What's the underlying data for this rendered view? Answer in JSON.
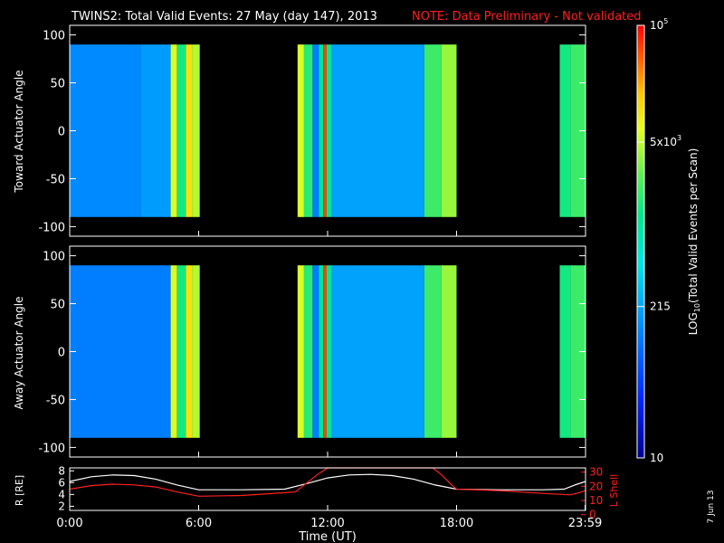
{
  "title": {
    "main": "TWINS2: Total Valid Events: 27 May (day 147), 2013",
    "note": "NOTE: Data Preliminary - Not validated"
  },
  "date_stamp": "7 Jun 13",
  "colors": {
    "background": "#000000",
    "axes": "#ffffff",
    "note": "#ff2020",
    "r_line": "#ffffff",
    "lshell_line": "#ff2020"
  },
  "chart_data": [
    {
      "type": "heatmap",
      "name": "toward",
      "ylabel": "Toward Actuator Angle",
      "ylim": [
        -110,
        110
      ],
      "yticks": [
        "100",
        "50",
        "0",
        "-50",
        "-100"
      ],
      "ytick_values": [
        100,
        50,
        0,
        -50,
        -100
      ],
      "data_yrange": [
        -90,
        90
      ],
      "xlim": [
        0,
        24
      ],
      "blocks": [
        {
          "t0": 0.0,
          "t1": 3.3,
          "level": 0.3
        },
        {
          "t0": 3.3,
          "t1": 4.7,
          "level": 0.33
        },
        {
          "t0": 4.7,
          "t1": 5.0,
          "level": 0.75
        },
        {
          "t0": 5.0,
          "t1": 5.4,
          "level": 0.58
        },
        {
          "t0": 5.4,
          "t1": 5.7,
          "level": 0.8
        },
        {
          "t0": 5.7,
          "t1": 6.05,
          "level": 0.72
        },
        {
          "t0": 10.6,
          "t1": 10.9,
          "level": 0.75
        },
        {
          "t0": 10.9,
          "t1": 11.3,
          "level": 0.6
        },
        {
          "t0": 11.3,
          "t1": 11.6,
          "level": 0.28
        },
        {
          "t0": 11.6,
          "t1": 11.8,
          "level": 0.55
        },
        {
          "t0": 11.8,
          "t1": 11.95,
          "level": 0.95
        },
        {
          "t0": 11.95,
          "t1": 12.2,
          "level": 0.55
        },
        {
          "t0": 12.2,
          "t1": 16.5,
          "level": 0.34
        },
        {
          "t0": 16.5,
          "t1": 17.3,
          "level": 0.62
        },
        {
          "t0": 17.3,
          "t1": 18.0,
          "level": 0.7
        },
        {
          "t0": 22.8,
          "t1": 23.3,
          "level": 0.58
        },
        {
          "t0": 23.3,
          "t1": 24.0,
          "level": 0.62
        }
      ]
    },
    {
      "type": "heatmap",
      "name": "away",
      "ylabel": "Away Actuator Angle",
      "ylim": [
        -110,
        110
      ],
      "yticks": [
        "100",
        "50",
        "0",
        "-50",
        "-100"
      ],
      "ytick_values": [
        100,
        50,
        0,
        -50,
        -100
      ],
      "data_yrange": [
        -90,
        90
      ],
      "xlim": [
        0,
        24
      ],
      "blocks": [
        {
          "t0": 0.0,
          "t1": 4.7,
          "level": 0.28
        },
        {
          "t0": 4.7,
          "t1": 5.0,
          "level": 0.75
        },
        {
          "t0": 5.0,
          "t1": 5.4,
          "level": 0.58
        },
        {
          "t0": 5.4,
          "t1": 5.7,
          "level": 0.8
        },
        {
          "t0": 5.7,
          "t1": 6.05,
          "level": 0.72
        },
        {
          "t0": 10.6,
          "t1": 10.9,
          "level": 0.75
        },
        {
          "t0": 10.9,
          "t1": 11.3,
          "level": 0.6
        },
        {
          "t0": 11.3,
          "t1": 11.6,
          "level": 0.28
        },
        {
          "t0": 11.6,
          "t1": 11.8,
          "level": 0.55
        },
        {
          "t0": 11.8,
          "t1": 11.95,
          "level": 0.95
        },
        {
          "t0": 11.95,
          "t1": 12.2,
          "level": 0.55
        },
        {
          "t0": 12.2,
          "t1": 16.5,
          "level": 0.34
        },
        {
          "t0": 16.5,
          "t1": 17.3,
          "level": 0.62
        },
        {
          "t0": 17.3,
          "t1": 18.0,
          "level": 0.7
        },
        {
          "t0": 22.8,
          "t1": 23.3,
          "level": 0.58
        },
        {
          "t0": 23.3,
          "t1": 24.0,
          "level": 0.62
        }
      ]
    },
    {
      "type": "line",
      "name": "orbit",
      "ylabel_left": "R [RE]",
      "ylabel_right": "L Shell",
      "xlabel": "Time (UT)",
      "xticks": [
        "0:00",
        "6:00",
        "12:00",
        "18:00",
        "23:59"
      ],
      "xtick_values": [
        0,
        6,
        12,
        18,
        23.98
      ],
      "xlim": [
        0,
        24
      ],
      "ylim_left": [
        1.3,
        8.5
      ],
      "yticks_left": [
        "8",
        "6",
        "4",
        "2"
      ],
      "ytick_values_left": [
        8,
        6,
        4,
        2
      ],
      "ylim_right": [
        3,
        33
      ],
      "yticks_right": [
        "30",
        "20",
        "10",
        "0"
      ],
      "ytick_values_right": [
        30,
        20,
        10,
        0
      ],
      "series": [
        {
          "name": "R",
          "axis": "left",
          "x": [
            0,
            1,
            2,
            3,
            4,
            5,
            6,
            8,
            10,
            11,
            12,
            13,
            14,
            15,
            16,
            17,
            18,
            20,
            22,
            23,
            23.5,
            24
          ],
          "y": [
            6.2,
            7.0,
            7.3,
            7.2,
            6.6,
            5.6,
            4.8,
            4.8,
            4.9,
            5.8,
            6.8,
            7.3,
            7.4,
            7.2,
            6.6,
            5.6,
            4.9,
            4.8,
            4.8,
            4.9,
            5.6,
            6.2
          ]
        },
        {
          "name": "L Shell",
          "axis": "right",
          "x": [
            0,
            1,
            2,
            3,
            4,
            5,
            6,
            8,
            10,
            10.5,
            11,
            11.5,
            12,
            16.9,
            17.3,
            17.7,
            18,
            20,
            22,
            23.3,
            23.7,
            24
          ],
          "y": [
            18,
            20.5,
            21.5,
            21,
            19.5,
            16,
            13,
            13.5,
            15.5,
            16,
            22,
            28,
            33,
            33,
            28,
            22,
            18,
            17,
            15,
            14,
            15.5,
            17
          ]
        }
      ]
    }
  ],
  "colorbar": {
    "label_pre": "LOG",
    "label_sub": "10",
    "label_post": "(Total Valid Events per Scan)",
    "ticks": [
      {
        "base": "10",
        "exp": "5",
        "frac": 1.0
      },
      {
        "base": "5x10",
        "exp": "3",
        "frac": 0.73
      },
      {
        "base": "215",
        "exp": "",
        "frac": 0.35
      },
      {
        "base": "10",
        "exp": "",
        "frac": 0.0
      }
    ]
  }
}
